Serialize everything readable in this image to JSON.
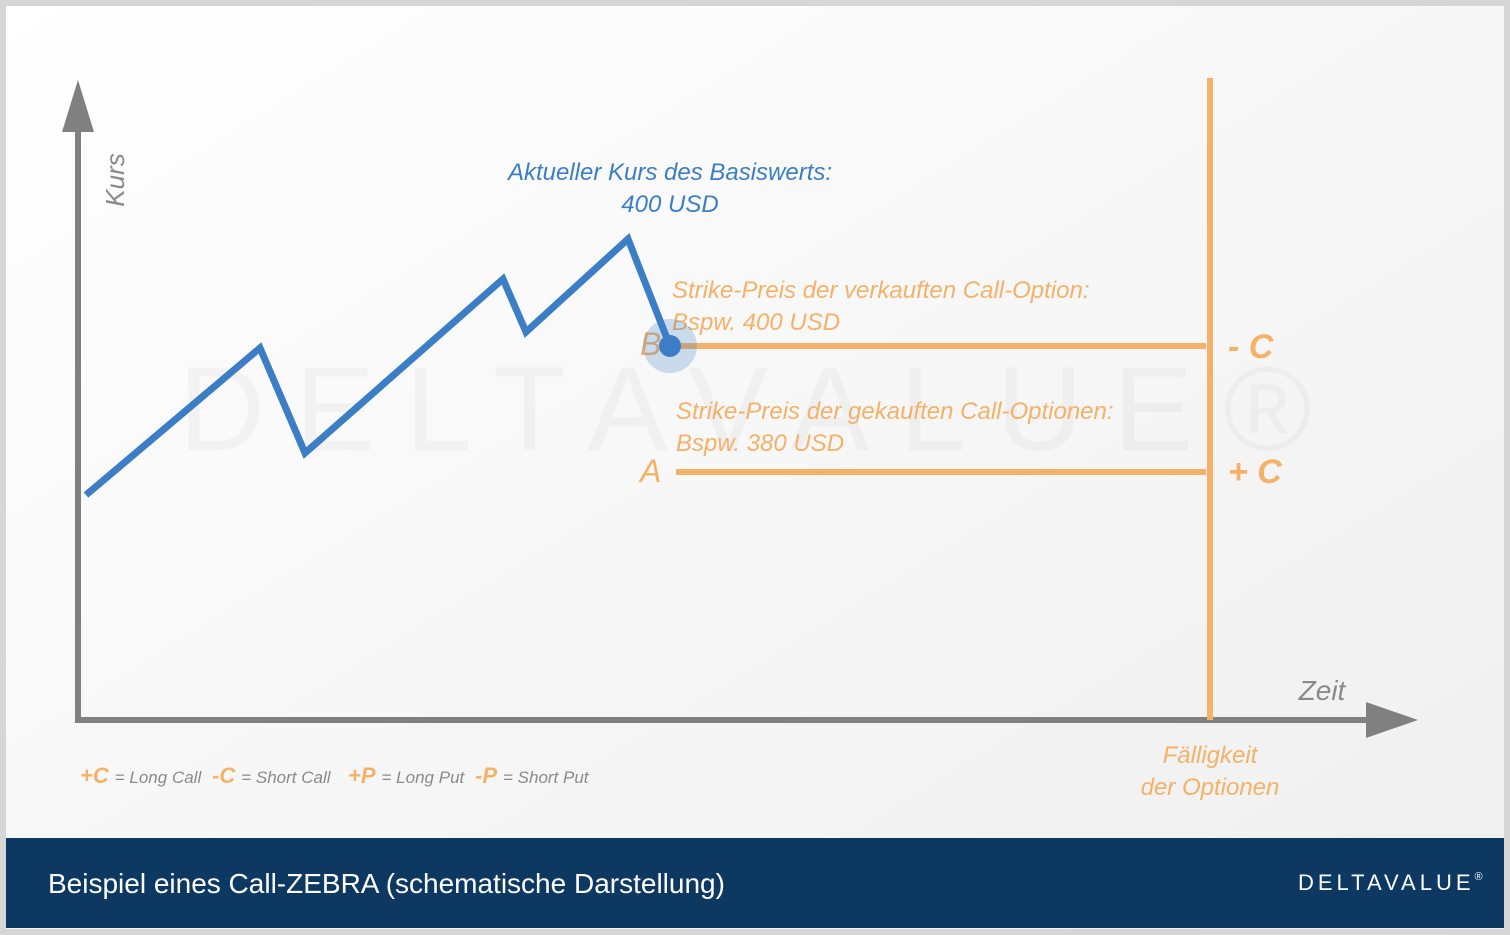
{
  "axes": {
    "y_label": "Kurs",
    "x_label": "Zeit"
  },
  "current_price": {
    "line1": "Aktueller Kurs des Basiswerts:",
    "line2": "400 USD"
  },
  "strike_b": {
    "line1": "Strike-Preis der verkauften Call-Option:",
    "line2": "Bspw. 400 USD",
    "point": "B",
    "position": "- C"
  },
  "strike_a": {
    "line1": "Strike-Preis der gekauften Call-Optionen:",
    "line2": "Bspw. 380 USD",
    "point": "A",
    "position": "+ C"
  },
  "expiry": {
    "line1": "Fälligkeit",
    "line2": "der Optionen"
  },
  "legend": [
    {
      "symbol": "+C",
      "text": "= Long Call"
    },
    {
      "symbol": "-C",
      "text": "= Short Call"
    },
    {
      "symbol": "+P",
      "text": "= Long Put"
    },
    {
      "symbol": "-P",
      "text": "= Short Put"
    }
  ],
  "watermark": "DELTAVALUE®",
  "footer": {
    "title": "Beispiel eines Call-ZEBRA (schematische Darstellung)",
    "logo": "DELTAVALUE",
    "logo_mark": "®"
  }
}
